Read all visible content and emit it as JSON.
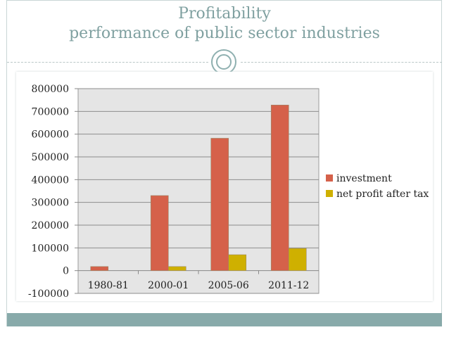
{
  "slide": {
    "title_line1": "Profitability",
    "title_line2": "performance of public sector industries"
  },
  "chart_data": {
    "type": "bar",
    "categories": [
      "1980-81",
      "2000-01",
      "2005-06",
      "2011-12"
    ],
    "series": [
      {
        "name": "investment",
        "values": [
          18000,
          330000,
          582000,
          728000
        ],
        "color": "#d5614a"
      },
      {
        "name": "net profit after tax",
        "values": [
          0,
          18000,
          70000,
          98000
        ],
        "color": "#cfb000"
      }
    ],
    "ylim": [
      -100000,
      800000
    ],
    "yticks": [
      -100000,
      0,
      100000,
      200000,
      300000,
      400000,
      500000,
      600000,
      700000,
      800000
    ],
    "ytick_labels": [
      "-100000",
      "0",
      "100000",
      "200000",
      "300000",
      "400000",
      "500000",
      "600000",
      "700000",
      "800000"
    ],
    "legend_position": "right",
    "plot_background": "#e5e5e5",
    "grid": true
  }
}
